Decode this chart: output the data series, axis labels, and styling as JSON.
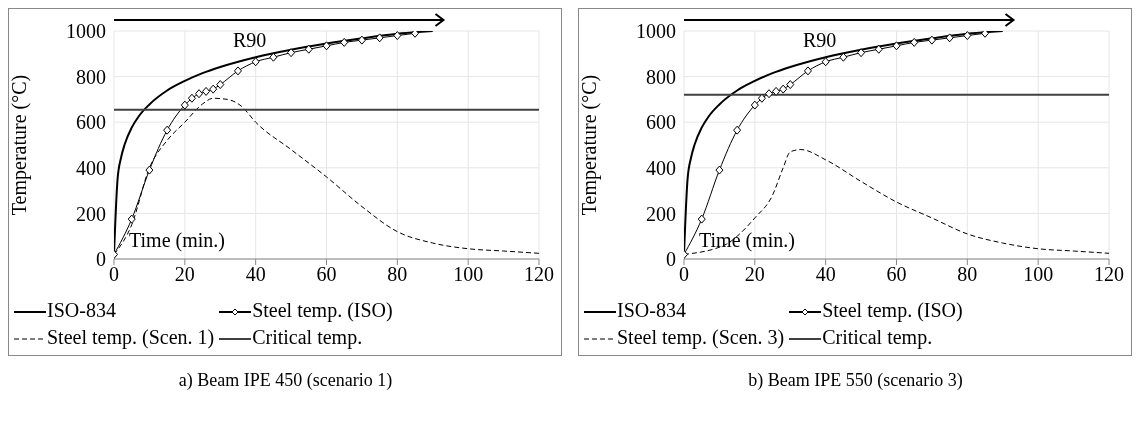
{
  "chart_data": [
    {
      "type": "line",
      "title": "a) Beam IPE 450 (scenario 1)",
      "xlabel": "Time (min.)",
      "ylabel": "Temperature (°C)",
      "xlim": [
        0,
        120
      ],
      "xticks": [
        0,
        20,
        40,
        60,
        80,
        100,
        120
      ],
      "ylim": [
        0,
        1000
      ],
      "yticks": [
        0,
        200,
        400,
        600,
        800,
        1000
      ],
      "grid": true,
      "legend": "bottom",
      "annotations": [
        "R90"
      ],
      "series": [
        {
          "name": "ISO-834",
          "color": "#000000",
          "line_style": "solid",
          "marker": "none",
          "x": [
            0,
            1,
            2,
            3,
            5,
            7,
            10,
            15,
            20,
            25,
            30,
            40,
            50,
            60,
            70,
            80,
            90
          ],
          "values": [
            20,
            349,
            445,
            502,
            576,
            626,
            678,
            739,
            781,
            815,
            842,
            885,
            918,
            945,
            968,
            988,
            1000
          ]
        },
        {
          "name": "Steel temp. (ISO)",
          "color": "#000000",
          "line_style": "solid",
          "marker": "diamond",
          "x": [
            0,
            5,
            10,
            15,
            20,
            22,
            24,
            26,
            28,
            30,
            35,
            40,
            45,
            50,
            55,
            60,
            65,
            70,
            75,
            80,
            85
          ],
          "values": [
            20,
            175,
            390,
            565,
            675,
            705,
            725,
            735,
            745,
            765,
            825,
            865,
            885,
            905,
            920,
            935,
            950,
            960,
            970,
            980,
            990
          ]
        },
        {
          "name": "Steel temp. (Scen. 1)",
          "color": "#000000",
          "line_style": "dashed",
          "marker": "none",
          "x": [
            0,
            5,
            10,
            15,
            20,
            25,
            28,
            32,
            36,
            40,
            50,
            60,
            70,
            80,
            90,
            100,
            110,
            120
          ],
          "values": [
            20,
            150,
            400,
            520,
            600,
            680,
            705,
            700,
            670,
            600,
            480,
            360,
            230,
            120,
            70,
            45,
            35,
            25
          ]
        },
        {
          "name": "Critical temp.",
          "color": "#404040",
          "line_style": "solid",
          "marker": "none",
          "x": [
            0,
            120
          ],
          "values": [
            655,
            655
          ]
        }
      ]
    },
    {
      "type": "line",
      "title": "b) Beam IPE 550 (scenario 3)",
      "xlabel": "Time (min.)",
      "ylabel": "Temperature (°C)",
      "xlim": [
        0,
        120
      ],
      "xticks": [
        0,
        20,
        40,
        60,
        80,
        100,
        120
      ],
      "ylim": [
        0,
        1000
      ],
      "yticks": [
        0,
        200,
        400,
        600,
        800,
        1000
      ],
      "grid": true,
      "legend": "bottom",
      "annotations": [
        "R90"
      ],
      "series": [
        {
          "name": "ISO-834",
          "color": "#000000",
          "line_style": "solid",
          "marker": "none",
          "x": [
            0,
            1,
            2,
            3,
            5,
            7,
            10,
            15,
            20,
            25,
            30,
            40,
            50,
            60,
            70,
            80,
            90
          ],
          "values": [
            20,
            349,
            445,
            502,
            576,
            626,
            678,
            739,
            781,
            815,
            842,
            885,
            918,
            945,
            968,
            988,
            1000
          ]
        },
        {
          "name": "Steel temp. (ISO)",
          "color": "#000000",
          "line_style": "solid",
          "marker": "diamond",
          "x": [
            0,
            5,
            10,
            15,
            20,
            22,
            24,
            26,
            28,
            30,
            35,
            40,
            45,
            50,
            55,
            60,
            65,
            70,
            75,
            80,
            85
          ],
          "values": [
            20,
            175,
            390,
            565,
            675,
            705,
            725,
            735,
            745,
            765,
            825,
            865,
            885,
            905,
            920,
            935,
            950,
            960,
            970,
            980,
            990
          ]
        },
        {
          "name": "Steel temp. (Scen. 3)",
          "color": "#000000",
          "line_style": "dashed",
          "marker": "none",
          "x": [
            0,
            12,
            15,
            20,
            25,
            28,
            30,
            33,
            40,
            50,
            60,
            70,
            80,
            90,
            100,
            110,
            120
          ],
          "values": [
            20,
            65,
            100,
            180,
            280,
            400,
            470,
            480,
            435,
            340,
            250,
            180,
            110,
            70,
            45,
            35,
            25
          ]
        },
        {
          "name": "Critical temp.",
          "color": "#404040",
          "line_style": "solid",
          "marker": "none",
          "x": [
            0,
            120
          ],
          "values": [
            720,
            720
          ]
        }
      ]
    }
  ]
}
